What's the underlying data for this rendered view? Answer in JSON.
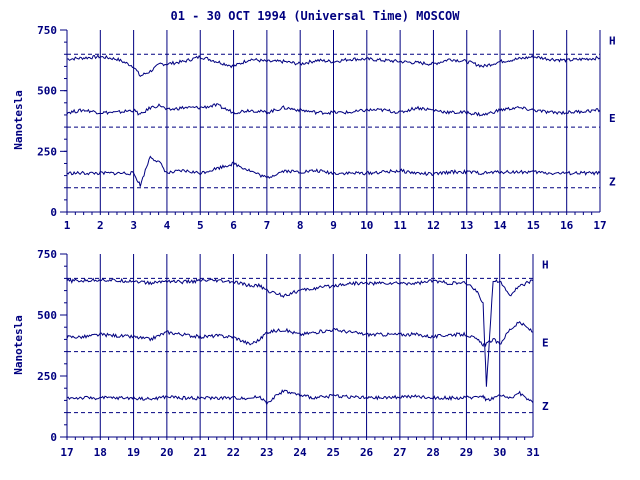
{
  "title": "01 - 30 OCT 1994 (Universal Time) MOSCOW",
  "colors": {
    "ink": "#000080",
    "background": "#ffffff"
  },
  "chart_data": [
    {
      "type": "line",
      "panel": "top",
      "ylabel": "Nanotesla",
      "ylim": [
        0,
        750
      ],
      "yticks": [
        0,
        250,
        500,
        750
      ],
      "xlim": [
        1,
        17
      ],
      "xticks": [
        1,
        2,
        3,
        4,
        5,
        6,
        7,
        8,
        9,
        10,
        11,
        12,
        13,
        14,
        15,
        16,
        17
      ],
      "reference_lines": [
        {
          "component": "H",
          "value": 650
        },
        {
          "component": "E",
          "value": 350
        },
        {
          "component": "Z",
          "value": 100
        }
      ],
      "series": [
        {
          "name": "H",
          "x": [
            1,
            1.5,
            2,
            2.5,
            3,
            3.2,
            3.5,
            3.8,
            4,
            4.5,
            5,
            5.5,
            6,
            6.5,
            7,
            7.5,
            8,
            8.5,
            9,
            9.5,
            10,
            10.5,
            11,
            11.5,
            12,
            12.5,
            13,
            13.5,
            14,
            14.5,
            15,
            15.5,
            16,
            16.5,
            17
          ],
          "values": [
            630,
            635,
            640,
            630,
            600,
            560,
            580,
            610,
            610,
            620,
            640,
            620,
            600,
            630,
            620,
            620,
            610,
            625,
            620,
            630,
            630,
            625,
            620,
            615,
            610,
            630,
            620,
            600,
            620,
            630,
            640,
            630,
            625,
            630,
            635
          ]
        },
        {
          "name": "E",
          "x": [
            1,
            1.5,
            2,
            2.5,
            3,
            3.2,
            3.5,
            3.8,
            4,
            4.5,
            5,
            5.5,
            6,
            6.5,
            7,
            7.5,
            8,
            8.5,
            9,
            9.5,
            10,
            10.5,
            11,
            11.5,
            12,
            12.5,
            13,
            13.5,
            14,
            14.5,
            15,
            15.5,
            16,
            16.5,
            17
          ],
          "values": [
            410,
            420,
            410,
            410,
            420,
            400,
            430,
            440,
            420,
            430,
            430,
            440,
            410,
            420,
            410,
            430,
            420,
            410,
            410,
            410,
            420,
            420,
            410,
            430,
            420,
            410,
            410,
            400,
            420,
            430,
            420,
            410,
            410,
            415,
            420
          ]
        },
        {
          "name": "Z",
          "x": [
            1,
            1.5,
            2,
            2.5,
            3,
            3.2,
            3.5,
            3.8,
            4,
            4.5,
            5,
            5.5,
            6,
            6.5,
            7,
            7.5,
            8,
            8.5,
            9,
            9.5,
            10,
            10.5,
            11,
            11.5,
            12,
            12.5,
            13,
            13.5,
            14,
            14.5,
            15,
            15.5,
            16,
            16.5,
            17
          ],
          "values": [
            160,
            160,
            160,
            160,
            160,
            110,
            230,
            200,
            160,
            170,
            160,
            180,
            200,
            170,
            140,
            170,
            165,
            170,
            160,
            160,
            160,
            165,
            170,
            160,
            155,
            165,
            165,
            160,
            165,
            165,
            165,
            160,
            160,
            160,
            160
          ]
        }
      ]
    },
    {
      "type": "line",
      "panel": "bottom",
      "ylabel": "Nanotesla",
      "ylim": [
        0,
        750
      ],
      "yticks": [
        0,
        250,
        500,
        750
      ],
      "xlim": [
        17,
        31
      ],
      "xticks": [
        17,
        18,
        19,
        20,
        21,
        22,
        23,
        24,
        25,
        26,
        27,
        28,
        29,
        30,
        31
      ],
      "reference_lines": [
        {
          "component": "H",
          "value": 650
        },
        {
          "component": "E",
          "value": 350
        },
        {
          "component": "Z",
          "value": 100
        }
      ],
      "series": [
        {
          "name": "H",
          "x": [
            17,
            17.5,
            18,
            18.5,
            19,
            19.5,
            20,
            20.5,
            21,
            21.5,
            22,
            22.5,
            22.8,
            23,
            23.5,
            24,
            24.5,
            25,
            25.5,
            26,
            26.5,
            27,
            27.5,
            28,
            28.5,
            29,
            29.3,
            29.5,
            29.6,
            29.8,
            30,
            30.3,
            30.6,
            31
          ],
          "values": [
            640,
            640,
            645,
            640,
            640,
            630,
            640,
            635,
            640,
            640,
            635,
            620,
            620,
            600,
            580,
            600,
            610,
            620,
            630,
            630,
            630,
            630,
            630,
            640,
            630,
            630,
            600,
            550,
            200,
            640,
            640,
            580,
            620,
            640
          ]
        },
        {
          "name": "E",
          "x": [
            17,
            17.5,
            18,
            18.5,
            19,
            19.5,
            20,
            20.5,
            21,
            21.5,
            22,
            22.5,
            22.8,
            23,
            23.5,
            24,
            24.5,
            25,
            25.5,
            26,
            26.5,
            27,
            27.5,
            28,
            28.5,
            29,
            29.3,
            29.5,
            29.6,
            29.8,
            30,
            30.3,
            30.6,
            31
          ],
          "values": [
            410,
            410,
            420,
            415,
            410,
            400,
            430,
            420,
            410,
            415,
            410,
            380,
            400,
            430,
            440,
            420,
            430,
            440,
            430,
            420,
            420,
            420,
            420,
            410,
            420,
            420,
            400,
            380,
            380,
            400,
            380,
            440,
            470,
            430
          ]
        },
        {
          "name": "Z",
          "x": [
            17,
            17.5,
            18,
            18.5,
            19,
            19.5,
            20,
            20.5,
            21,
            21.5,
            22,
            22.5,
            22.8,
            23,
            23.5,
            24,
            24.5,
            25,
            25.5,
            26,
            26.5,
            27,
            27.5,
            28,
            28.5,
            29,
            29.3,
            29.5,
            29.6,
            29.8,
            30,
            30.3,
            30.6,
            31
          ],
          "values": [
            160,
            160,
            160,
            160,
            160,
            155,
            165,
            160,
            160,
            160,
            160,
            160,
            165,
            140,
            190,
            170,
            160,
            170,
            165,
            160,
            160,
            165,
            165,
            160,
            160,
            160,
            165,
            170,
            150,
            160,
            170,
            160,
            180,
            140
          ]
        }
      ]
    }
  ]
}
